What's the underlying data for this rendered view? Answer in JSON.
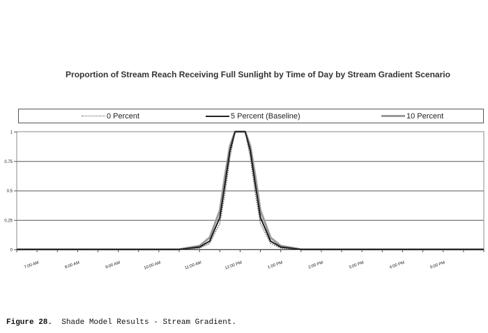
{
  "chart_data": {
    "type": "line",
    "title": "Proportion of Stream Reach Receiving Full Sunlight by Time of Day by Stream Gradient Scenario",
    "xlabel": "",
    "ylabel": "",
    "ylim": [
      0,
      1
    ],
    "y_ticks": [
      "0",
      "0.25",
      "0.5",
      "0.75",
      "1"
    ],
    "x_tick_labels": [
      "7:00 AM",
      "8:00 AM",
      "9:00 AM",
      "10:00 AM",
      "11:00 AM",
      "12:00 PM",
      "1:00 PM",
      "2:00 PM",
      "3:00 PM",
      "4:00 PM",
      "5:00 PM"
    ],
    "x_hours": [
      6.5,
      7,
      7.5,
      8,
      8.5,
      9,
      9.5,
      10,
      10.5,
      11,
      11.25,
      11.5,
      11.625,
      11.75,
      11.875,
      12,
      12.125,
      12.25,
      12.375,
      12.5,
      12.75,
      13,
      13.5,
      14,
      14.5,
      15,
      15.5,
      16,
      16.5,
      17,
      17.5,
      18
    ],
    "grid": true,
    "legend_position": "top",
    "series": [
      {
        "name": "0 Percent",
        "style": "dotted",
        "color": "#555555",
        "values": [
          0,
          0,
          0,
          0,
          0,
          0,
          0,
          0,
          0,
          0.01,
          0.05,
          0.22,
          0.47,
          0.78,
          1,
          1,
          1,
          0.78,
          0.47,
          0.22,
          0.05,
          0.01,
          0,
          0,
          0,
          0,
          0,
          0,
          0,
          0,
          0,
          0
        ]
      },
      {
        "name": "5 Percent (Baseline)",
        "style": "solid",
        "color": "#222222",
        "values": [
          0,
          0,
          0,
          0,
          0,
          0,
          0,
          0,
          0,
          0.02,
          0.07,
          0.27,
          0.55,
          0.84,
          1,
          1,
          1,
          0.84,
          0.55,
          0.27,
          0.07,
          0.02,
          0,
          0,
          0,
          0,
          0,
          0,
          0,
          0,
          0,
          0
        ]
      },
      {
        "name": "10 Percent",
        "style": "solid-gray",
        "color": "#999999",
        "values": [
          0,
          0,
          0,
          0,
          0,
          0,
          0,
          0,
          0,
          0.03,
          0.1,
          0.33,
          0.62,
          0.88,
          1,
          1,
          1,
          0.88,
          0.62,
          0.33,
          0.1,
          0.03,
          0,
          0,
          0,
          0,
          0,
          0,
          0,
          0,
          0,
          0
        ]
      }
    ]
  },
  "legend": {
    "items": [
      "0 Percent",
      "5 Percent (Baseline)",
      "10 Percent"
    ]
  },
  "caption": {
    "label": "Figure 28.",
    "text": "  Shade Model Results - Stream Gradient."
  }
}
